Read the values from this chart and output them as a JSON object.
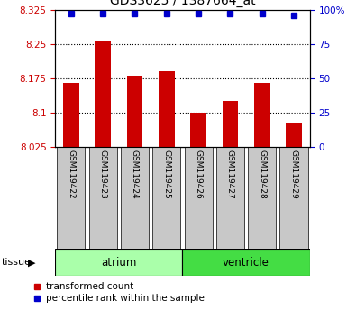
{
  "title": "GDS3625 / 1387664_at",
  "samples": [
    "GSM119422",
    "GSM119423",
    "GSM119424",
    "GSM119425",
    "GSM119426",
    "GSM119427",
    "GSM119428",
    "GSM119429"
  ],
  "red_values": [
    8.165,
    8.255,
    8.18,
    8.19,
    8.1,
    8.125,
    8.165,
    8.075
  ],
  "blue_values": [
    97,
    97,
    97,
    97,
    97,
    97,
    97,
    96
  ],
  "ylim_left": [
    8.025,
    8.325
  ],
  "ylim_right": [
    0,
    100
  ],
  "yticks_left": [
    8.025,
    8.1,
    8.175,
    8.25,
    8.325
  ],
  "yticks_right": [
    0,
    25,
    50,
    75,
    100
  ],
  "ytick_labels_left": [
    "8.025",
    "8.1",
    "8.175",
    "8.25",
    "8.325"
  ],
  "ytick_labels_right": [
    "0",
    "25",
    "50",
    "75",
    "100%"
  ],
  "atrium_color": "#AAFFAA",
  "ventricle_color": "#44DD44",
  "tissue_label": "tissue",
  "legend_red_label": "transformed count",
  "legend_blue_label": "percentile rank within the sample",
  "bar_color": "#CC0000",
  "dot_color": "#0000CC",
  "tick_bg_color": "#C8C8C8",
  "left_tick_color": "#CC0000",
  "right_tick_color": "#0000CC",
  "grid_lines": [
    8.1,
    8.175,
    8.25
  ]
}
